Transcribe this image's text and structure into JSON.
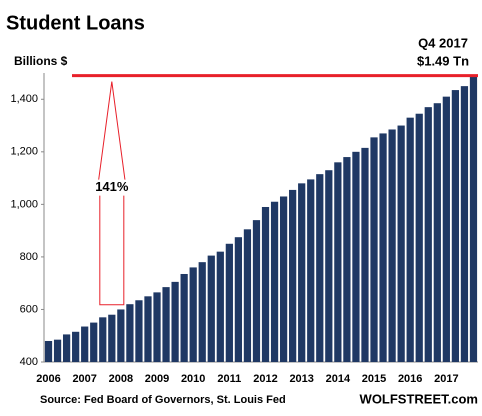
{
  "chart_data": {
    "type": "bar",
    "title": "Student Loans",
    "y_label": "Billions $",
    "categories": [
      "2006",
      null,
      null,
      null,
      "2007",
      null,
      null,
      null,
      "2008",
      null,
      null,
      null,
      "2009",
      null,
      null,
      null,
      "2010",
      null,
      null,
      null,
      "2011",
      null,
      null,
      null,
      "2012",
      null,
      null,
      null,
      "2013",
      null,
      null,
      null,
      "2014",
      null,
      null,
      null,
      "2015",
      null,
      null,
      null,
      "2016",
      null,
      null,
      null,
      "2017",
      null,
      null,
      null
    ],
    "values": [
      480,
      485,
      505,
      515,
      535,
      550,
      570,
      580,
      600,
      620,
      635,
      650,
      665,
      685,
      705,
      735,
      760,
      780,
      805,
      820,
      850,
      875,
      905,
      940,
      990,
      1010,
      1030,
      1055,
      1080,
      1095,
      1115,
      1130,
      1160,
      1180,
      1200,
      1215,
      1255,
      1270,
      1285,
      1300,
      1330,
      1345,
      1370,
      1385,
      1410,
      1435,
      1450,
      1490
    ],
    "color": "#1f3864",
    "ylim": [
      400,
      1500
    ],
    "yticks": [
      400,
      600,
      800,
      {
        "value": 1000,
        "label": "1,000"
      },
      {
        "value": 1200,
        "label": "1,200"
      },
      {
        "value": 1400,
        "label": "1,400"
      }
    ],
    "grid": false,
    "hline": 1490,
    "hline_color": "#e8202a",
    "hline_labels": [
      "Q4 2017",
      "$1.49 Tn"
    ],
    "arrow": {
      "label": "141%",
      "from": 618,
      "to": 1490,
      "color": "#e8202a"
    },
    "source": "Source: Fed Board of Governors, St. Louis Fed",
    "watermark": "WOLFSTREET.com"
  }
}
